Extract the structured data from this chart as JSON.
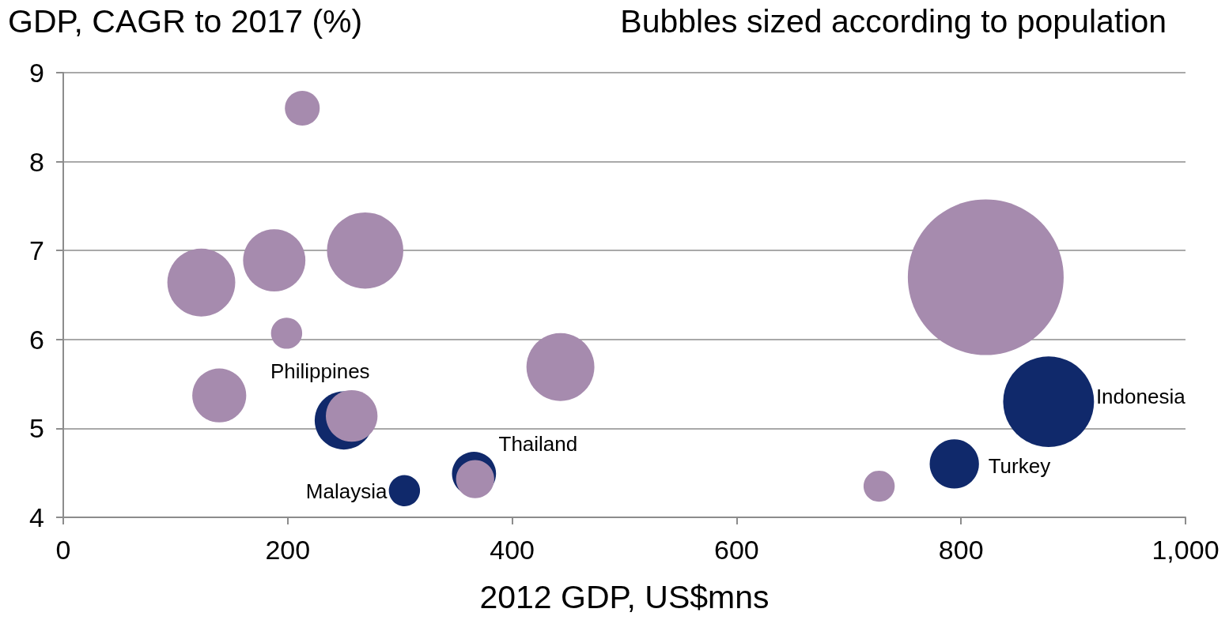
{
  "chart_data": {
    "type": "bubble",
    "xlabel": "2012 GDP, US$mns",
    "ylabel": "GDP, CAGR to 2017 (%)",
    "series": [
      {
        "color": "#10296b",
        "x": [
          250,
          366,
          304,
          878,
          794
        ],
        "values": [
          5.09,
          4.49,
          4.3,
          5.3,
          4.6
        ],
        "sizes": [
          0.14,
          0.08,
          0.04,
          0.34,
          0.1
        ]
      },
      {
        "color": "#a68bae",
        "x": [
          213,
          123,
          188,
          269,
          199,
          139,
          257,
          443,
          367,
          727,
          822
        ],
        "values": [
          8.6,
          6.64,
          6.89,
          7.0,
          6.07,
          5.37,
          5.14,
          5.69,
          4.43,
          4.35,
          6.7
        ],
        "sizes": [
          0.05,
          0.19,
          0.16,
          0.24,
          0.04,
          0.12,
          0.11,
          0.19,
          0.06,
          0.04,
          1
        ]
      }
    ],
    "annotations": [
      {
        "text": "Philippines",
        "x": 250,
        "y": 5.09
      },
      {
        "text": "Thailand",
        "x": 366,
        "y": 4.49
      },
      {
        "text": "Malaysia",
        "x": 304,
        "y": 4.3
      },
      {
        "text": "Indonesia",
        "x": 878,
        "y": 5.3
      },
      {
        "text": "Turkey",
        "x": 794,
        "y": 4.6
      },
      "Bubbles sized according to population"
    ],
    "xlim": [
      0,
      1000
    ],
    "xticks": [
      0,
      200,
      400,
      600,
      800,
      {
        "value": 1000,
        "label": "1,000"
      }
    ],
    "ylim": [
      4,
      9
    ],
    "yticks": [
      4,
      5,
      6,
      7,
      8,
      9
    ],
    "grid": "y"
  }
}
